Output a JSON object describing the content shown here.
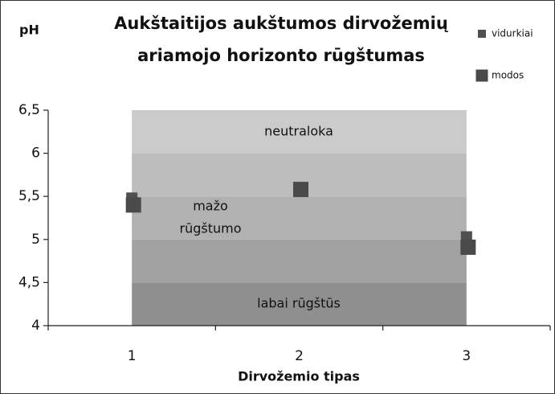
{
  "chart_data": {
    "type": "scatter",
    "title": [
      "Aukštaitijos aukštumos dirvožemių",
      "ariamojo horizonto rūgštumas"
    ],
    "y_label": "pH",
    "x_label": "Dirvožemio tipas",
    "categories": [
      "1",
      "2",
      "3"
    ],
    "series": [
      {
        "name": "vidurkiai",
        "color": "#505050",
        "values": [
          5.48,
          5.6,
          5.03
        ]
      },
      {
        "name": "modos",
        "color": "#4a4a4a",
        "values": [
          5.4,
          5.58,
          4.91
        ]
      }
    ],
    "bands": [
      {
        "from": 4,
        "to": 4.5,
        "color": "#8f8f8f"
      },
      {
        "from": 4.5,
        "to": 5,
        "color": "#a2a2a2"
      },
      {
        "from": 5,
        "to": 5.5,
        "color": "#b1b1b1"
      },
      {
        "from": 5.5,
        "to": 6,
        "color": "#bdbdbd"
      },
      {
        "from": 6,
        "to": 6.5,
        "color": "#cbcbcb"
      }
    ],
    "annotations": [
      "neutraloka",
      "mažo",
      "rūgštumo",
      "labai rūgštūs"
    ],
    "ylim": [
      4,
      6.5
    ],
    "yticks": [
      {
        "value": 4,
        "label": "4"
      },
      {
        "value": 4.5,
        "label": "4,5"
      },
      {
        "value": 5,
        "label": "5"
      },
      {
        "value": 5.5,
        "label": "5,5"
      },
      {
        "value": 6,
        "label": "6"
      },
      {
        "value": 6.5,
        "label": "6,5"
      }
    ],
    "legend": "top-right"
  }
}
